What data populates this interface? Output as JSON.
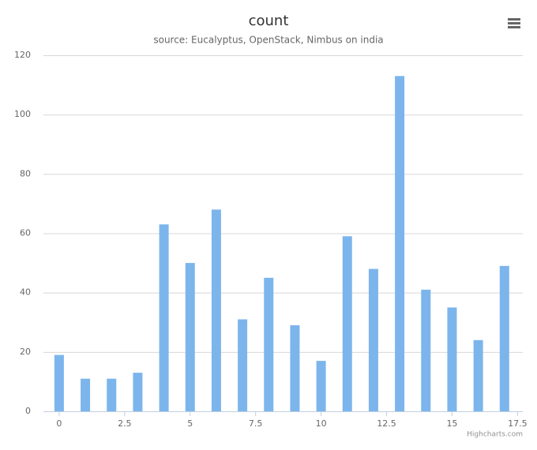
{
  "chart_data": {
    "type": "bar",
    "title": "count",
    "subtitle": "source: Eucalyptus, OpenStack, Nimbus on india",
    "x": [
      0,
      1,
      2,
      3,
      4,
      5,
      6,
      7,
      8,
      9,
      10,
      11,
      12,
      13,
      14,
      15,
      16,
      17
    ],
    "values": [
      19,
      11,
      11,
      13,
      63,
      50,
      68,
      31,
      45,
      29,
      17,
      59,
      48,
      113,
      41,
      35,
      24,
      49
    ],
    "color": "#7cb5ec",
    "xlim": [
      -0.6,
      17.7
    ],
    "xticks": [
      0,
      2.5,
      5,
      7.5,
      10,
      12.5,
      15,
      17.5
    ],
    "ylim": [
      0,
      120
    ],
    "yticks": [
      0,
      20,
      40,
      60,
      80,
      100,
      120
    ],
    "grid": true,
    "credits": "Highcharts.com"
  }
}
